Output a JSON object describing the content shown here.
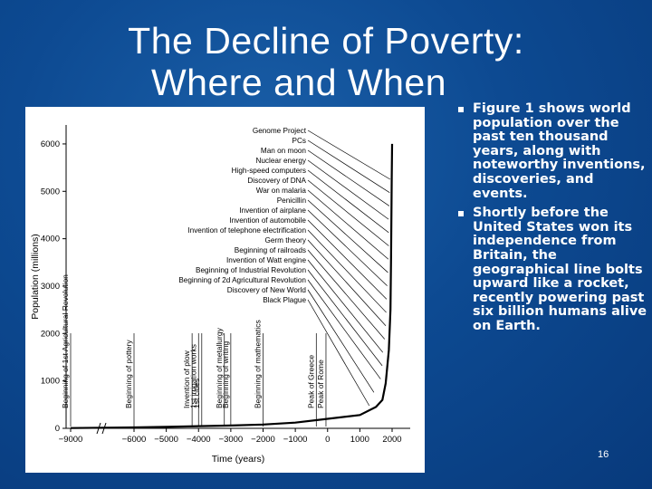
{
  "slide": {
    "title_line1": "The Decline of Poverty:",
    "title_line2": "Where and When",
    "bullets": [
      "Figure 1 shows world population over the past ten thousand years, along with noteworthy inventions, discoveries, and events.",
      "Shortly before the United States won its independence from Britain, the geographical line bolts upward like a rocket, recently powering past six billion humans alive on Earth."
    ],
    "page_number": "16"
  },
  "chart_data": {
    "type": "line",
    "title": "",
    "xlabel": "Time (years)",
    "ylabel": "Population (millions)",
    "x_ticks": [
      "−9000",
      "−6000",
      "−5000",
      "−4000",
      "−3000",
      "−2000",
      "−1000",
      "0",
      "1000",
      "2000"
    ],
    "y_ticks": [
      "0",
      "1000",
      "2000",
      "3000",
      "4000",
      "5000",
      "6000"
    ],
    "ylim": [
      0,
      6400
    ],
    "axis_break": "between −9000 and −6000",
    "grid": false,
    "series": [
      {
        "x": [
          -9000,
          -6000,
          -5000,
          -4000,
          -3000,
          -2000,
          -1000,
          0,
          1000,
          1500,
          1700,
          1800,
          1900,
          1950,
          1970,
          1990,
          2000
        ],
        "y": [
          5,
          20,
          30,
          45,
          60,
          80,
          120,
          200,
          280,
          450,
          600,
          950,
          1650,
          2500,
          3700,
          5300,
          6000
        ]
      }
    ],
    "vertical_annotations": [
      {
        "x": -9000,
        "label": "Beginning of 1st Agricultural Revolution"
      },
      {
        "x": -6000,
        "label": "Beginning of pottery"
      },
      {
        "x": -4200,
        "label": "Invention of plow"
      },
      {
        "x": -4000,
        "label": "1st irrigation works"
      },
      {
        "x": -3900,
        "label": "1st cities"
      },
      {
        "x": -3200,
        "label": "Beginning of metallurgy"
      },
      {
        "x": -3000,
        "label": "Beginning of writing"
      },
      {
        "x": -2000,
        "label": "Beginning of mathematics"
      },
      {
        "x": -350,
        "label": "Peak of Greece"
      },
      {
        "x": -50,
        "label": "Peak of Rome"
      }
    ],
    "fan_annotations": [
      {
        "label": "Genome Project",
        "x": 1995
      },
      {
        "label": "PCs",
        "x": 1980
      },
      {
        "label": "Man on moon",
        "x": 1969
      },
      {
        "label": "Nuclear energy",
        "x": 1945
      },
      {
        "label": "High-speed computers",
        "x": 1950
      },
      {
        "label": "Discovery of DNA",
        "x": 1953
      },
      {
        "label": "War on malaria",
        "x": 1940
      },
      {
        "label": "Penicillin",
        "x": 1928
      },
      {
        "label": "Invention of airplane",
        "x": 1903
      },
      {
        "label": "Invention of automobile",
        "x": 1886
      },
      {
        "label": "Invention of telephone electrification",
        "x": 1876
      },
      {
        "label": "Germ theory",
        "x": 1860
      },
      {
        "label": "Beginning of railroads",
        "x": 1825
      },
      {
        "label": "Invention of Watt engine",
        "x": 1769
      },
      {
        "label": "Beginning of Industrial Revolution",
        "x": 1750
      },
      {
        "label": "Beginning of 2d Agricultural Revolution",
        "x": 1700
      },
      {
        "label": "Discovery of New World",
        "x": 1492
      },
      {
        "label": "Black Plague",
        "x": 1348
      }
    ]
  }
}
